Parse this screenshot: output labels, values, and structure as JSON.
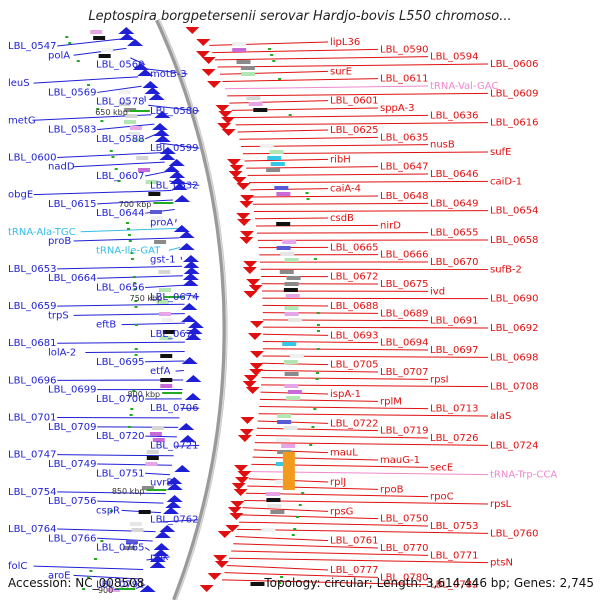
{
  "header": {
    "title": "Leptospira borgpetersenii serovar Hardjo-bovis L550 chromoso..."
  },
  "footer": {
    "accession": "Accession: NC_008508",
    "summary": "Topology: circular; Length: 3,614,446 bp; Genes: 2,745"
  },
  "colors": {
    "reverse_strand": "#1f1fd6",
    "forward_strand": "#e01010",
    "trna_reverse": "#33bde6",
    "trna_forward": "#ee88cc",
    "backbone": "#9a9a9a",
    "kbp_tick": "#22aa22",
    "label_text": "#111111"
  },
  "kbp_marks": [
    "650 kbp",
    "700 kbp",
    "750 kbp",
    "800 kbp",
    "850 kbp",
    "900"
  ],
  "left_labels": [
    {
      "text": "LBL_0547",
      "kind": "gene"
    },
    {
      "text": "polA",
      "kind": "gene"
    },
    {
      "text": "LBL_0560",
      "kind": "gene"
    },
    {
      "text": "motB-3",
      "kind": "gene"
    },
    {
      "text": "leuS",
      "kind": "gene"
    },
    {
      "text": "LBL_0569",
      "kind": "gene"
    },
    {
      "text": "LBL_0578",
      "kind": "gene"
    },
    {
      "text": "LBL_0580",
      "kind": "gene"
    },
    {
      "text": "metG",
      "kind": "gene"
    },
    {
      "text": "LBL_0583",
      "kind": "gene"
    },
    {
      "text": "LBL_0588",
      "kind": "gene"
    },
    {
      "text": "LBL_0599",
      "kind": "gene"
    },
    {
      "text": "LBL_0600",
      "kind": "gene"
    },
    {
      "text": "nadD",
      "kind": "gene"
    },
    {
      "text": "LBL_0607",
      "kind": "gene"
    },
    {
      "text": "LBL_0632",
      "kind": "gene"
    },
    {
      "text": "obgE",
      "kind": "gene"
    },
    {
      "text": "LBL_0615",
      "kind": "gene"
    },
    {
      "text": "LBL_0644",
      "kind": "gene"
    },
    {
      "text": "proA",
      "kind": "gene"
    },
    {
      "text": "tRNA-Ala-TGC",
      "kind": "trna"
    },
    {
      "text": "proB",
      "kind": "gene"
    },
    {
      "text": "tRNA-Ile-GAT",
      "kind": "trna"
    },
    {
      "text": "gst-1",
      "kind": "gene"
    },
    {
      "text": "LBL_0653",
      "kind": "gene"
    },
    {
      "text": "LBL_0664",
      "kind": "gene"
    },
    {
      "text": "LBL_0656",
      "kind": "gene"
    },
    {
      "text": "LBL_0674",
      "kind": "gene"
    },
    {
      "text": "LBL_0659",
      "kind": "gene"
    },
    {
      "text": "trpS",
      "kind": "gene"
    },
    {
      "text": "eftB",
      "kind": "gene"
    },
    {
      "text": "LBL_0677",
      "kind": "gene"
    },
    {
      "text": "LBL_0681",
      "kind": "gene"
    },
    {
      "text": "lolA-2",
      "kind": "gene"
    },
    {
      "text": "LBL_0695",
      "kind": "gene"
    },
    {
      "text": "etfA",
      "kind": "gene"
    },
    {
      "text": "LBL_0696",
      "kind": "gene"
    },
    {
      "text": "LBL_0699",
      "kind": "gene"
    },
    {
      "text": "LBL_0700",
      "kind": "gene"
    },
    {
      "text": "LBL_0706",
      "kind": "gene"
    },
    {
      "text": "LBL_0701",
      "kind": "gene"
    },
    {
      "text": "LBL_0709",
      "kind": "gene"
    },
    {
      "text": "LBL_0720",
      "kind": "gene"
    },
    {
      "text": "LBL_0721",
      "kind": "gene"
    },
    {
      "text": "LBL_0747",
      "kind": "gene"
    },
    {
      "text": "LBL_0749",
      "kind": "gene"
    },
    {
      "text": "LBL_0751",
      "kind": "gene"
    },
    {
      "text": "uvrB",
      "kind": "gene"
    },
    {
      "text": "LBL_0754",
      "kind": "gene"
    },
    {
      "text": "LBL_0756",
      "kind": "gene"
    },
    {
      "text": "cspR",
      "kind": "gene"
    },
    {
      "text": "LBL_0762",
      "kind": "gene"
    },
    {
      "text": "LBL_0764",
      "kind": "gene"
    },
    {
      "text": "LBL_0766",
      "kind": "gene"
    },
    {
      "text": "LBL_0765",
      "kind": "gene"
    },
    {
      "text": "ppk",
      "kind": "gene"
    },
    {
      "text": "folC",
      "kind": "gene"
    },
    {
      "text": "aroE",
      "kind": "gene"
    },
    {
      "text": "LBL_0791",
      "kind": "gene"
    }
  ],
  "right_labels": [
    {
      "text": "lipL36",
      "kind": "gene"
    },
    {
      "text": "LBL_0590",
      "kind": "gene"
    },
    {
      "text": "LBL_0594",
      "kind": "gene"
    },
    {
      "text": "LBL_0606",
      "kind": "gene"
    },
    {
      "text": "surE",
      "kind": "gene"
    },
    {
      "text": "LBL_0611",
      "kind": "gene"
    },
    {
      "text": "tRNA-Val-GAC",
      "kind": "trna"
    },
    {
      "text": "LBL_0609",
      "kind": "gene"
    },
    {
      "text": "LBL_0601",
      "kind": "gene"
    },
    {
      "text": "sppA-3",
      "kind": "gene"
    },
    {
      "text": "LBL_0636",
      "kind": "gene"
    },
    {
      "text": "LBL_0616",
      "kind": "gene"
    },
    {
      "text": "LBL_0625",
      "kind": "gene"
    },
    {
      "text": "LBL_0635",
      "kind": "gene"
    },
    {
      "text": "nusB",
      "kind": "gene"
    },
    {
      "text": "sufE",
      "kind": "gene"
    },
    {
      "text": "ribH",
      "kind": "gene"
    },
    {
      "text": "LBL_0647",
      "kind": "gene"
    },
    {
      "text": "LBL_0646",
      "kind": "gene"
    },
    {
      "text": "caiD-1",
      "kind": "gene"
    },
    {
      "text": "caiA-4",
      "kind": "gene"
    },
    {
      "text": "LBL_0648",
      "kind": "gene"
    },
    {
      "text": "LBL_0649",
      "kind": "gene"
    },
    {
      "text": "LBL_0654",
      "kind": "gene"
    },
    {
      "text": "csdB",
      "kind": "gene"
    },
    {
      "text": "nirD",
      "kind": "gene"
    },
    {
      "text": "LBL_0655",
      "kind": "gene"
    },
    {
      "text": "LBL_0658",
      "kind": "gene"
    },
    {
      "text": "LBL_0665",
      "kind": "gene"
    },
    {
      "text": "LBL_0666",
      "kind": "gene"
    },
    {
      "text": "LBL_0670",
      "kind": "gene"
    },
    {
      "text": "sufB-2",
      "kind": "gene"
    },
    {
      "text": "LBL_0672",
      "kind": "gene"
    },
    {
      "text": "LBL_0675",
      "kind": "gene"
    },
    {
      "text": "ivd",
      "kind": "gene"
    },
    {
      "text": "LBL_0690",
      "kind": "gene"
    },
    {
      "text": "LBL_0688",
      "kind": "gene"
    },
    {
      "text": "LBL_0689",
      "kind": "gene"
    },
    {
      "text": "LBL_0691",
      "kind": "gene"
    },
    {
      "text": "LBL_0692",
      "kind": "gene"
    },
    {
      "text": "LBL_0693",
      "kind": "gene"
    },
    {
      "text": "LBL_0694",
      "kind": "gene"
    },
    {
      "text": "LBL_0697",
      "kind": "gene"
    },
    {
      "text": "LBL_0698",
      "kind": "gene"
    },
    {
      "text": "LBL_0705",
      "kind": "gene"
    },
    {
      "text": "LBL_0707",
      "kind": "gene"
    },
    {
      "text": "rpsI",
      "kind": "gene"
    },
    {
      "text": "LBL_0708",
      "kind": "gene"
    },
    {
      "text": "ispA-1",
      "kind": "gene"
    },
    {
      "text": "rplM",
      "kind": "gene"
    },
    {
      "text": "LBL_0713",
      "kind": "gene"
    },
    {
      "text": "alaS",
      "kind": "gene"
    },
    {
      "text": "LBL_0722",
      "kind": "gene"
    },
    {
      "text": "LBL_0719",
      "kind": "gene"
    },
    {
      "text": "LBL_0726",
      "kind": "gene"
    },
    {
      "text": "LBL_0724",
      "kind": "gene"
    },
    {
      "text": "mauL",
      "kind": "gene"
    },
    {
      "text": "mauG-1",
      "kind": "gene"
    },
    {
      "text": "secE",
      "kind": "gene"
    },
    {
      "text": "tRNA-Trp-CCA",
      "kind": "trna"
    },
    {
      "text": "rplJ",
      "kind": "gene"
    },
    {
      "text": "rpoB",
      "kind": "gene"
    },
    {
      "text": "rpoC",
      "kind": "gene"
    },
    {
      "text": "rpsL",
      "kind": "gene"
    },
    {
      "text": "rpsG",
      "kind": "gene"
    },
    {
      "text": "LBL_0750",
      "kind": "gene"
    },
    {
      "text": "LBL_0753",
      "kind": "gene"
    },
    {
      "text": "LBL_0760",
      "kind": "gene"
    },
    {
      "text": "LBL_0761",
      "kind": "gene"
    },
    {
      "text": "LBL_0770",
      "kind": "gene"
    },
    {
      "text": "LBL_0771",
      "kind": "gene"
    },
    {
      "text": "ptsN",
      "kind": "gene"
    },
    {
      "text": "LBL_0777",
      "kind": "gene"
    },
    {
      "text": "LBL_0780",
      "kind": "gene"
    },
    {
      "text": "LBL_0782",
      "kind": "gene"
    }
  ]
}
